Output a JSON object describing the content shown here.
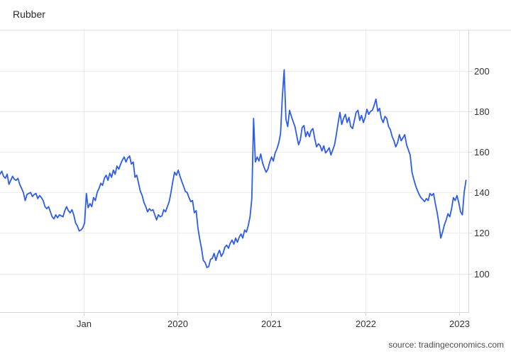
{
  "header": {
    "title": "Rubber"
  },
  "footer": {
    "source": "source: tradingeconomics.com"
  },
  "chart_data": {
    "type": "line",
    "title": "Rubber",
    "legend": false,
    "grid": true,
    "x_axis": {
      "range": [
        2018.11,
        2023.1
      ],
      "ticks": [
        {
          "label": "Jan",
          "t": 2019.0
        },
        {
          "label": "2020",
          "t": 2020.0
        },
        {
          "label": "2021",
          "t": 2021.0
        },
        {
          "label": "2022",
          "t": 2022.0
        },
        {
          "label": "2023",
          "t": 2023.0
        }
      ]
    },
    "y_axis": {
      "side": "right",
      "range": [
        81,
        220.2
      ],
      "ticks": [
        100,
        120,
        140,
        160,
        180,
        200
      ]
    },
    "colors": {
      "line": "#2d5bec",
      "grid": "#ececec",
      "axis": "#d6d6d6",
      "separator": "#e3e3e3",
      "tick_text": "#333333",
      "background": "#ffffff"
    },
    "series": [
      {
        "name": "Rubber",
        "start_date": "2018-02-10",
        "interval_days": 7,
        "values": [
          149,
          150.5,
          148,
          147,
          149,
          144,
          146,
          148,
          146.5,
          146,
          147,
          144,
          142,
          140,
          136,
          139,
          139.5,
          140,
          138,
          139,
          139.5,
          137,
          138.5,
          137.5,
          136,
          133,
          132,
          133,
          130.5,
          128,
          127,
          129,
          127.5,
          129,
          128.5,
          128,
          131,
          133,
          131,
          130,
          131.5,
          129,
          125,
          123.5,
          121,
          121.5,
          122.5,
          125,
          139.5,
          132.5,
          134.5,
          133,
          137.5,
          136,
          140,
          142,
          144.5,
          143.5,
          147,
          148.5,
          146,
          149.5,
          147.5,
          151,
          149,
          153,
          151.5,
          154,
          156,
          157.5,
          155,
          157,
          158,
          154,
          155,
          147.5,
          148.5,
          144.5,
          140.5,
          138.5,
          135,
          133,
          130.5,
          132,
          131,
          131.5,
          129,
          126.5,
          129,
          128,
          128.5,
          131.5,
          130.5,
          133,
          135.5,
          140,
          145.5,
          150,
          148.5,
          151,
          148,
          145.5,
          143,
          140.5,
          140,
          137.5,
          135.5,
          136,
          130,
          131,
          122.5,
          117,
          112.5,
          106.5,
          105.5,
          103,
          103.5,
          107,
          107.5,
          110,
          106.5,
          109.5,
          111.5,
          108.5,
          110,
          113,
          114,
          112.5,
          115,
          116.5,
          114.5,
          117.5,
          115.5,
          118,
          119.5,
          117.5,
          121.5,
          120.5,
          123.5,
          128,
          137,
          176.5,
          155,
          157.5,
          155.5,
          159,
          154.5,
          152,
          150,
          151.5,
          155,
          157.5,
          155.5,
          159.5,
          161.5,
          164.5,
          169,
          187,
          200.5,
          176,
          172.5,
          180.5,
          177.5,
          175,
          172.5,
          168,
          163.5,
          166,
          172,
          173,
          167.5,
          170,
          167.5,
          170.5,
          171.5,
          166.5,
          162.5,
          164,
          163,
          160.5,
          163,
          159.5,
          160.5,
          162,
          158.5,
          161,
          163.5,
          168.5,
          174.5,
          179.5,
          173.5,
          176.5,
          178.5,
          174.5,
          177,
          172.5,
          171.5,
          175.5,
          179.5,
          180.5,
          175.5,
          178,
          174.5,
          177,
          181,
          178.5,
          180,
          180.5,
          183,
          186,
          180,
          181.5,
          176.5,
          174.5,
          177.5,
          176.5,
          172.5,
          171,
          167.5,
          165.5,
          162.5,
          164.5,
          168.5,
          165.5,
          167,
          168.5,
          163.5,
          161,
          158.5,
          150,
          146.5,
          143.5,
          141,
          139,
          137.5,
          136.5,
          135.5,
          137,
          136,
          139.5,
          138.5,
          139.5,
          134.5,
          130,
          124.5,
          117.5,
          120.5,
          124,
          126.5,
          129.5,
          128,
          132,
          137.5,
          136,
          138.5,
          135,
          130.5,
          129,
          140,
          146
        ]
      }
    ]
  }
}
